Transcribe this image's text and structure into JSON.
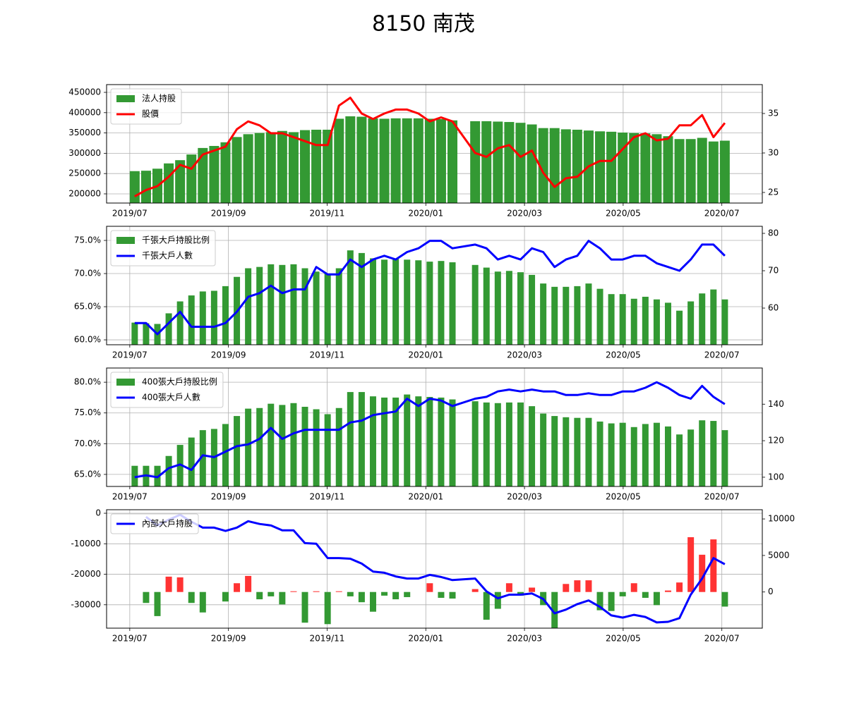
{
  "title": "8150 南茂",
  "chart_data": [
    {
      "type": "combo",
      "x": [
        7.1,
        7.33,
        7.56,
        7.79,
        8.02,
        8.25,
        8.48,
        8.71,
        8.94,
        9.17,
        9.4,
        9.63,
        9.86,
        10.09,
        10.32,
        10.55,
        10.78,
        11.01,
        11.24,
        11.47,
        11.7,
        11.93,
        12.16,
        12.39,
        12.62,
        12.85,
        13.08,
        13.31,
        13.54,
        14.0,
        14.23,
        14.46,
        14.69,
        14.92,
        15.15,
        15.38,
        15.61,
        15.84,
        16.07,
        16.3,
        16.53,
        16.76,
        16.99,
        17.22,
        17.45,
        17.68,
        17.91,
        18.14,
        18.37,
        18.6,
        18.83,
        19.06
      ],
      "xlim": [
        6.53,
        19.82
      ],
      "xticks": [
        {
          "value": 7,
          "label": "2019/07"
        },
        {
          "value": 9,
          "label": "2019/09"
        },
        {
          "value": 11,
          "label": "2019/11"
        },
        {
          "value": 13,
          "label": "2020/01"
        },
        {
          "value": 15,
          "label": "2020/03"
        },
        {
          "value": 17,
          "label": "2020/05"
        },
        {
          "value": 19,
          "label": "2020/07"
        }
      ],
      "ylim": [
        177400,
        469100
      ],
      "yticks": [
        200000,
        250000,
        300000,
        350000,
        400000,
        450000
      ],
      "y2lim": [
        23.66,
        38.66
      ],
      "y2ticks": [
        25,
        30,
        35
      ],
      "grid": true,
      "legend": "upper left",
      "series": [
        {
          "name": "法人持股",
          "type": "bar",
          "axis": "y",
          "color": "#339933",
          "values": [
            256000,
            257000,
            262000,
            275000,
            283000,
            297000,
            313000,
            318000,
            327000,
            340000,
            347000,
            350000,
            352000,
            355000,
            352000,
            357000,
            358000,
            358000,
            385000,
            391000,
            390000,
            386000,
            385000,
            386000,
            386000,
            386000,
            385000,
            384000,
            381000,
            379000,
            379000,
            378000,
            377000,
            375000,
            371000,
            362000,
            362000,
            359000,
            358000,
            356000,
            354000,
            353000,
            351000,
            350000,
            349000,
            347000,
            342000,
            335000,
            335000,
            338000,
            329000,
            331000
          ]
        },
        {
          "name": "股價",
          "type": "line",
          "axis": "y2",
          "color": "#ff0000",
          "values": [
            24.5,
            25.3,
            25.8,
            27.0,
            28.5,
            28.0,
            29.8,
            30.3,
            30.8,
            33.0,
            34.0,
            33.5,
            32.5,
            32.5,
            32.0,
            31.5,
            31.0,
            31.0,
            36.0,
            37.0,
            35.0,
            34.3,
            35.0,
            35.5,
            35.5,
            35.0,
            34.0,
            34.5,
            34.0,
            30.0,
            29.5,
            30.6,
            31.0,
            29.5,
            30.3,
            27.5,
            25.7,
            26.8,
            27.0,
            28.3,
            29.0,
            29.0,
            30.5,
            32.0,
            32.5,
            31.6,
            31.8,
            33.5,
            33.5,
            34.8,
            32.0,
            33.8
          ]
        }
      ]
    },
    {
      "type": "combo",
      "x": [
        7.1,
        7.33,
        7.56,
        7.79,
        8.02,
        8.25,
        8.48,
        8.71,
        8.94,
        9.17,
        9.4,
        9.63,
        9.86,
        10.09,
        10.32,
        10.55,
        10.78,
        11.01,
        11.24,
        11.47,
        11.7,
        11.93,
        12.16,
        12.39,
        12.62,
        12.85,
        13.08,
        13.31,
        13.54,
        14.0,
        14.23,
        14.46,
        14.69,
        14.92,
        15.15,
        15.38,
        15.61,
        15.84,
        16.07,
        16.3,
        16.53,
        16.76,
        16.99,
        17.22,
        17.45,
        17.68,
        17.91,
        18.14,
        18.37,
        18.6,
        18.83,
        19.06
      ],
      "xlim": [
        6.53,
        19.82
      ],
      "xticks": [
        {
          "value": 7,
          "label": "2019/07"
        },
        {
          "value": 9,
          "label": "2019/09"
        },
        {
          "value": 11,
          "label": "2019/11"
        },
        {
          "value": 13,
          "label": "2020/01"
        },
        {
          "value": 15,
          "label": "2020/03"
        },
        {
          "value": 17,
          "label": "2020/05"
        },
        {
          "value": 19,
          "label": "2020/07"
        }
      ],
      "ylim": [
        59.26,
        77.13
      ],
      "yticks": [
        {
          "value": 60,
          "label": "60.0%"
        },
        {
          "value": 65,
          "label": "65.0%"
        },
        {
          "value": 70,
          "label": "70.0%"
        },
        {
          "value": 75,
          "label": "75.0%"
        }
      ],
      "y2lim": [
        50.19,
        81.89
      ],
      "y2ticks": [
        60,
        70,
        80
      ],
      "grid": true,
      "legend": "upper left",
      "series": [
        {
          "name": "千張大戶持股比例",
          "type": "bar",
          "axis": "y",
          "color": "#339933",
          "values": [
            62.6,
            62.5,
            62.4,
            64.0,
            65.8,
            66.7,
            67.3,
            67.4,
            68.1,
            69.5,
            70.8,
            71.0,
            71.4,
            71.3,
            71.4,
            70.8,
            70.3,
            70.0,
            70.8,
            73.5,
            73.1,
            72.3,
            72.1,
            72.2,
            72.1,
            72.0,
            71.8,
            71.9,
            71.7,
            71.3,
            70.9,
            70.3,
            70.4,
            70.2,
            69.8,
            68.5,
            68.0,
            68.0,
            68.1,
            68.5,
            67.7,
            66.9,
            66.9,
            66.2,
            66.5,
            66.1,
            65.6,
            64.4,
            65.8,
            67.0,
            67.6,
            66.1
          ]
        },
        {
          "name": "千張大戶人數",
          "type": "line",
          "axis": "y2",
          "color": "#0000ff",
          "values": [
            56,
            56,
            53,
            56,
            59,
            55,
            55,
            55,
            56,
            59,
            63,
            64,
            66,
            64,
            65,
            65,
            71,
            69,
            69,
            73,
            71,
            73,
            74,
            73,
            75,
            76,
            78,
            78,
            76,
            77,
            76,
            73,
            74,
            73,
            76,
            75,
            71,
            73,
            74,
            78,
            76,
            73,
            73,
            74,
            74,
            72,
            71,
            70,
            73,
            77,
            77,
            74
          ]
        }
      ]
    },
    {
      "type": "combo",
      "x": [
        7.1,
        7.33,
        7.56,
        7.79,
        8.02,
        8.25,
        8.48,
        8.71,
        8.94,
        9.17,
        9.4,
        9.63,
        9.86,
        10.09,
        10.32,
        10.55,
        10.78,
        11.01,
        11.24,
        11.47,
        11.7,
        11.93,
        12.16,
        12.39,
        12.62,
        12.85,
        13.08,
        13.31,
        13.54,
        14.0,
        14.23,
        14.46,
        14.69,
        14.92,
        15.15,
        15.38,
        15.61,
        15.84,
        16.07,
        16.3,
        16.53,
        16.76,
        16.99,
        17.22,
        17.45,
        17.68,
        17.91,
        18.14,
        18.37,
        18.6,
        18.83,
        19.06
      ],
      "xlim": [
        6.53,
        19.82
      ],
      "xticks": [
        {
          "value": 7,
          "label": "2019/07"
        },
        {
          "value": 9,
          "label": "2019/09"
        },
        {
          "value": 11,
          "label": "2019/11"
        },
        {
          "value": 13,
          "label": "2020/01"
        },
        {
          "value": 15,
          "label": "2020/03"
        },
        {
          "value": 17,
          "label": "2020/05"
        },
        {
          "value": 19,
          "label": "2020/07"
        }
      ],
      "ylim": [
        63.04,
        82.31
      ],
      "yticks": [
        {
          "value": 65,
          "label": "65.0%"
        },
        {
          "value": 70,
          "label": "70.0%"
        },
        {
          "value": 75,
          "label": "75.0%"
        },
        {
          "value": 80,
          "label": "80.0%"
        }
      ],
      "y2lim": [
        94.95,
        159.8
      ],
      "y2ticks": [
        100,
        120,
        140
      ],
      "grid": true,
      "legend": "upper left",
      "series": [
        {
          "name": "400張大戶持股比例",
          "type": "bar",
          "axis": "y",
          "color": "#339933",
          "values": [
            66.4,
            66.4,
            66.4,
            68.0,
            69.8,
            71.0,
            72.2,
            72.4,
            73.2,
            74.5,
            75.7,
            75.8,
            76.5,
            76.3,
            76.6,
            76.0,
            75.6,
            74.8,
            75.8,
            78.4,
            78.4,
            77.7,
            77.5,
            77.5,
            78.0,
            77.7,
            77.6,
            77.5,
            77.2,
            76.9,
            76.7,
            76.6,
            76.7,
            76.7,
            76.1,
            74.9,
            74.5,
            74.3,
            74.2,
            74.2,
            73.6,
            73.3,
            73.4,
            72.7,
            73.2,
            73.4,
            72.8,
            71.5,
            72.3,
            73.8,
            73.7,
            72.2
          ]
        },
        {
          "name": "400張大戶人數",
          "type": "line",
          "axis": "y2",
          "color": "#0000ff",
          "values": [
            100,
            101,
            100,
            105,
            107,
            104,
            112,
            111,
            114,
            117,
            118,
            121,
            127,
            121,
            124,
            126,
            126,
            126,
            126,
            130,
            131,
            134,
            135,
            136,
            143,
            139,
            143,
            142,
            139,
            143,
            144,
            147,
            148,
            147,
            148,
            147,
            147,
            145,
            145,
            146,
            145,
            145,
            147,
            147,
            149,
            152,
            149,
            145,
            143,
            150,
            144,
            140
          ]
        }
      ]
    },
    {
      "type": "combo",
      "x": [
        7.1,
        7.33,
        7.56,
        7.79,
        8.02,
        8.25,
        8.48,
        8.71,
        8.94,
        9.17,
        9.4,
        9.63,
        9.86,
        10.09,
        10.32,
        10.55,
        10.78,
        11.01,
        11.24,
        11.47,
        11.7,
        11.93,
        12.16,
        12.39,
        12.62,
        12.85,
        13.08,
        13.31,
        13.54,
        14.0,
        14.23,
        14.46,
        14.69,
        14.92,
        15.15,
        15.38,
        15.61,
        15.84,
        16.07,
        16.3,
        16.53,
        16.76,
        16.99,
        17.22,
        17.45,
        17.68,
        17.91,
        18.14,
        18.37,
        18.6,
        18.83,
        19.06
      ],
      "xlim": [
        6.53,
        19.82
      ],
      "xticks": [
        {
          "value": 7,
          "label": "2019/07"
        },
        {
          "value": 9,
          "label": "2019/09"
        },
        {
          "value": 11,
          "label": "2019/11"
        },
        {
          "value": 13,
          "label": "2020/01"
        },
        {
          "value": 15,
          "label": "2020/03"
        },
        {
          "value": 17,
          "label": "2020/05"
        },
        {
          "value": 19,
          "label": "2020/07"
        }
      ],
      "ylim": [
        -37674,
        1163
      ],
      "yticks": [
        -30000,
        -20000,
        -10000,
        0
      ],
      "y2lim": [
        -4951,
        11262
      ],
      "y2ticks": [
        0,
        5000,
        10000
      ],
      "grid": true,
      "legend": "upper left",
      "series": [
        {
          "type": "bar",
          "axis": "y2",
          "positive_color": "#ff3333",
          "negative_color": "#339933",
          "values": [
            null,
            -1500,
            -3300,
            2100,
            2000,
            -1500,
            -2800,
            null,
            -1300,
            1200,
            2200,
            -1000,
            -600,
            -1700,
            100,
            -4200,
            100,
            -4400,
            100,
            -600,
            -1400,
            -2700,
            -500,
            -1000,
            -700,
            null,
            1200,
            -800,
            -900,
            400,
            -3800,
            -2300,
            1200,
            -500,
            600,
            -1800,
            -5000,
            1100,
            1600,
            1600,
            -2500,
            -2600,
            -600,
            1200,
            -800,
            -1800,
            200,
            1300,
            7500,
            5100,
            7200,
            -2000
          ]
        },
        {
          "name": "內部大戶持股",
          "type": "line",
          "axis": "y",
          "color": "#0000ff",
          "values": [
            null,
            -1200,
            -4000,
            -2100,
            -500,
            -2800,
            -4700,
            -4700,
            -5800,
            -4700,
            -2600,
            -3500,
            -4000,
            -5600,
            -5600,
            -9800,
            -10000,
            -14700,
            -14700,
            -14900,
            -16500,
            -19100,
            -19500,
            -20700,
            -21400,
            -21400,
            -20200,
            -20900,
            -21900,
            -21400,
            -25600,
            -27900,
            -26700,
            -26700,
            -26300,
            -28100,
            -32800,
            -31600,
            -29800,
            -28600,
            -30700,
            -33500,
            -34200,
            -33300,
            -34000,
            -35800,
            -35600,
            -34400,
            -26700,
            -21400,
            -14700,
            -16700
          ]
        }
      ]
    }
  ]
}
